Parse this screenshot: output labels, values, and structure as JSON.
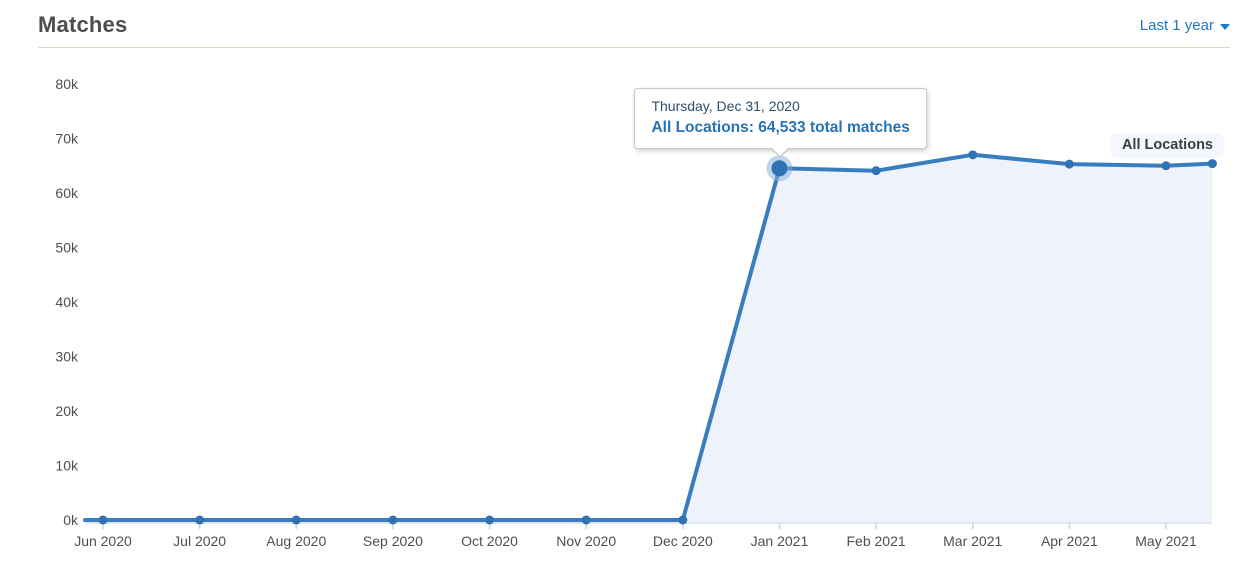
{
  "header": {
    "title": "Matches",
    "range_label": "Last 1 year"
  },
  "tooltip": {
    "date": "Thursday, Dec 31, 2020",
    "series": "All Locations",
    "text": "All Locations: 64,533 total matches",
    "value": 64533
  },
  "legend": {
    "label": "All Locations"
  },
  "colors": {
    "line": "#3a7dbf",
    "point": "#2f73b5",
    "halo": "rgba(130,172,214,0.5)",
    "area_fill": "#edf2fb",
    "axis": "#c6cedb",
    "tick": "#c9d4e4",
    "axis_label": "#4f4f4f",
    "title": "#4d4d4d",
    "link_blue": "#1f78c8",
    "divider": "#dbd7c2",
    "tooltip_date": "#2d4e6f",
    "tooltip_value": "#2673b8",
    "legend_bg": "#f3f7fd",
    "legend_text": "#3d3d3d"
  },
  "chart_data": {
    "type": "area",
    "title": "Matches",
    "xlabel": "",
    "ylabel": "",
    "grid": false,
    "legend_position": "inline-top-right",
    "ylim": [
      0,
      80000
    ],
    "y_tick_step": 10000,
    "y_tick_labels": [
      "0k",
      "10k",
      "20k",
      "30k",
      "40k",
      "50k",
      "60k",
      "70k",
      "80k"
    ],
    "x_tick_labels": [
      "Jun 2020",
      "Jul 2020",
      "Aug 2020",
      "Sep 2020",
      "Oct 2020",
      "Nov 2020",
      "Dec 2020",
      "Jan 2021",
      "Feb 2021",
      "Mar 2021",
      "Apr 2021",
      "May 2021"
    ],
    "series": [
      {
        "name": "All Locations",
        "points": [
          {
            "x_month": 0,
            "value": 0
          },
          {
            "x_month": 1,
            "value": 0
          },
          {
            "x_month": 2,
            "value": 0
          },
          {
            "x_month": 3,
            "value": 0
          },
          {
            "x_month": 4,
            "value": 0
          },
          {
            "x_month": 5,
            "value": 0
          },
          {
            "x_month": 6,
            "value": 0
          },
          {
            "x_month": 7,
            "value": 64533,
            "highlighted": true,
            "date": "Thursday, Dec 31, 2020"
          },
          {
            "x_month": 8,
            "value": 64100
          },
          {
            "x_month": 9,
            "value": 67000
          },
          {
            "x_month": 10,
            "value": 65300
          },
          {
            "x_month": 11,
            "value": 65000
          },
          {
            "x_month": 11.48,
            "value": 65400
          }
        ]
      }
    ]
  }
}
